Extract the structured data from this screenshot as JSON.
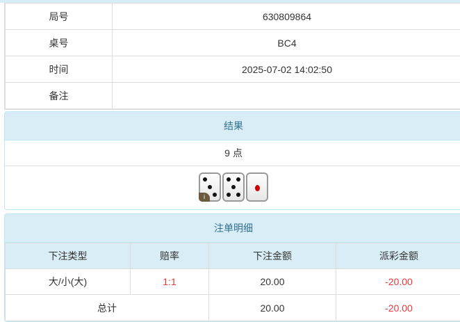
{
  "info": [
    {
      "label": "局号",
      "value": "630809864"
    },
    {
      "label": "桌号",
      "value": "BC4"
    },
    {
      "label": "时间",
      "value": "2025-07-02 14:02:50"
    },
    {
      "label": "备注",
      "value": ""
    }
  ],
  "result": {
    "title": "结果",
    "points": "9 点",
    "dice": [
      3,
      5,
      1
    ],
    "info_badge": "i"
  },
  "bets": {
    "title": "注单明细",
    "headers": [
      "下注类型",
      "赔率",
      "下注金额",
      "派彩金额"
    ],
    "rows": [
      {
        "type": "大/小(大)",
        "odds": "1:1",
        "amount": "20.00",
        "payout": "-20.00"
      }
    ],
    "total": {
      "label": "总计",
      "amount": "20.00",
      "payout": "-20.00"
    }
  },
  "colors": {
    "header_bg": "#d9edf7",
    "header_text": "#31708f",
    "negative": "#e4393c"
  }
}
